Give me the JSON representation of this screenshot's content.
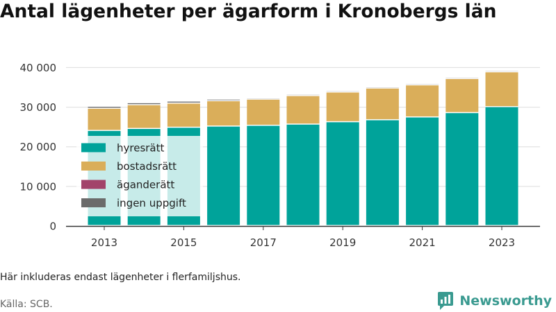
{
  "title": "Antal lägenheter per ägarform i Kronobergs län",
  "note": "Här inkluderas endast lägenheter i flerfamiljshus.",
  "source": "Källa: SCB.",
  "brand": "Newsworthy",
  "colors": {
    "hyresratt": "#00a39a",
    "bostadsratt": "#daae5a",
    "aganderatt": "#a2436a",
    "ingen_uppgift": "#6b6b6b",
    "brand": "#3a9a90"
  },
  "chart_data": {
    "type": "bar",
    "stacked": true,
    "categories": [
      "2013",
      "2014",
      "2015",
      "2016",
      "2017",
      "2018",
      "2019",
      "2020",
      "2021",
      "2022",
      "2023"
    ],
    "x_tick_labels": [
      "2013",
      "2015",
      "2017",
      "2019",
      "2021",
      "2023"
    ],
    "y_ticks": [
      0,
      10000,
      20000,
      30000,
      40000
    ],
    "y_tick_labels": [
      "0",
      "10 000",
      "20 000",
      "30 000",
      "40 000"
    ],
    "ylim": [
      0,
      42000
    ],
    "grid": true,
    "legend_position": "left-inside",
    "series": [
      {
        "key": "hyresratt",
        "name": "hyresrätt",
        "values": [
          24000,
          24500,
          24800,
          25100,
          25300,
          25600,
          26200,
          26700,
          27400,
          28500,
          30000
        ]
      },
      {
        "key": "bostadsratt",
        "name": "bostadsrätt",
        "values": [
          5600,
          6000,
          6100,
          6400,
          6600,
          7200,
          7500,
          8000,
          8100,
          8600,
          8800
        ]
      },
      {
        "key": "aganderatt",
        "name": "äganderätt",
        "values": [
          0,
          0,
          0,
          0,
          0,
          0,
          0,
          0,
          0,
          0,
          0
        ]
      },
      {
        "key": "ingen_uppgift",
        "name": "ingen uppgift",
        "values": [
          500,
          500,
          500,
          400,
          300,
          300,
          300,
          300,
          300,
          300,
          300
        ]
      }
    ]
  }
}
